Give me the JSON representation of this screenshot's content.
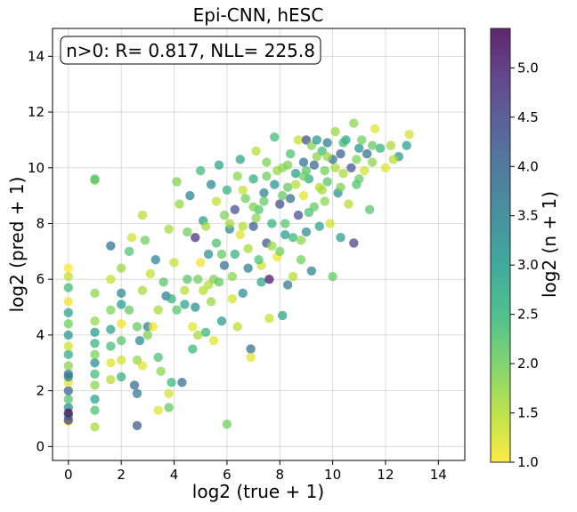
{
  "chart_data": {
    "type": "scatter",
    "title": "Epi-CNN, hESC",
    "xlabel": "log2 (true + 1)",
    "ylabel": "log2 (pred + 1)",
    "xlim": [
      -0.6,
      15
    ],
    "ylim": [
      -0.5,
      15
    ],
    "xticks": [
      0,
      2,
      4,
      6,
      8,
      10,
      12,
      14
    ],
    "yticks": [
      0,
      2,
      4,
      6,
      8,
      10,
      12,
      14
    ],
    "grid": true,
    "annotation": "n>0: R= 0.817, NLL= 225.8",
    "colorbar": {
      "label": "log2 (n + 1)",
      "min": 1.0,
      "max": 5.4,
      "ticks": [
        "1.0",
        "1.5",
        "2.0",
        "2.5",
        "3.0",
        "3.5",
        "4.0",
        "4.5",
        "5.0"
      ],
      "colormap": "viridis_r"
    },
    "columns": [
      "x",
      "y",
      "c"
    ],
    "points": [
      [
        0,
        0.9,
        1.0
      ],
      [
        0,
        1.1,
        2.6
      ],
      [
        0,
        1.4,
        3.3
      ],
      [
        0,
        1.7,
        2.2
      ],
      [
        0,
        2.0,
        4.0
      ],
      [
        0,
        2.3,
        1.2
      ],
      [
        0,
        2.6,
        3.8
      ],
      [
        0,
        2.9,
        1.8
      ],
      [
        0,
        3.3,
        2.7
      ],
      [
        0,
        3.6,
        1.3
      ],
      [
        0,
        4.0,
        3.1
      ],
      [
        0,
        4.4,
        2.0
      ],
      [
        0,
        4.8,
        2.9
      ],
      [
        0,
        5.2,
        1.1
      ],
      [
        0,
        5.7,
        2.4
      ],
      [
        0,
        6.1,
        1.4
      ],
      [
        0,
        6.4,
        1.0
      ],
      [
        0,
        1.2,
        5.3
      ],
      [
        0,
        0.95,
        4.6
      ],
      [
        0,
        2.5,
        3.6
      ],
      [
        1,
        0.7,
        1.6
      ],
      [
        1,
        1.3,
        2.3
      ],
      [
        1,
        1.7,
        2.9
      ],
      [
        1,
        2.2,
        1.8
      ],
      [
        1,
        2.6,
        2.4
      ],
      [
        1,
        3.0,
        3.3
      ],
      [
        1,
        3.3,
        1.9
      ],
      [
        1,
        3.7,
        2.6
      ],
      [
        1,
        4.1,
        3.0
      ],
      [
        1,
        4.5,
        1.7
      ],
      [
        1,
        5.5,
        1.8
      ],
      [
        1,
        9.55,
        1.9
      ],
      [
        1,
        9.6,
        2.2
      ],
      [
        1.6,
        2.4,
        1.5
      ],
      [
        1.6,
        3.0,
        1.2
      ],
      [
        1.6,
        3.6,
        2.4
      ],
      [
        1.6,
        4.2,
        2.9
      ],
      [
        1.6,
        4.9,
        1.9
      ],
      [
        1.6,
        6.0,
        1.4
      ],
      [
        1.6,
        7.2,
        3.8
      ],
      [
        2.0,
        2.5,
        2.6
      ],
      [
        2.0,
        3.1,
        1.3
      ],
      [
        2.0,
        3.8,
        2.2
      ],
      [
        2.0,
        4.4,
        1.1
      ],
      [
        2.0,
        5.1,
        3.0
      ],
      [
        2.0,
        5.5,
        3.4
      ],
      [
        2.0,
        6.4,
        1.7
      ],
      [
        2.3,
        7.0,
        2.3
      ],
      [
        2.4,
        7.5,
        1.3
      ],
      [
        2.5,
        2.2,
        3.9
      ],
      [
        2.6,
        0.75,
        4.2
      ],
      [
        2.6,
        1.9,
        3.7
      ],
      [
        2.6,
        4.3,
        2.1
      ],
      [
        2.7,
        3.8,
        3.4
      ],
      [
        2.8,
        2.9,
        1.2
      ],
      [
        2.8,
        5.6,
        1.6
      ],
      [
        2.9,
        7.4,
        2.0
      ],
      [
        2.8,
        8.3,
        1.5
      ],
      [
        3.0,
        4.3,
        3.6
      ],
      [
        3.1,
        6.2,
        1.4
      ],
      [
        3.2,
        4.3,
        1.1
      ],
      [
        3.3,
        6.7,
        3.5
      ],
      [
        3.4,
        1.3,
        1.2
      ],
      [
        3.4,
        3.2,
        2.3
      ],
      [
        3.5,
        2.7,
        1.8
      ],
      [
        3.6,
        5.9,
        2.2
      ],
      [
        3.7,
        5.4,
        3.7
      ],
      [
        3.8,
        1.9,
        1.3
      ],
      [
        3.8,
        1.4,
        2.1
      ],
      [
        3.9,
        2.3,
        2.5
      ],
      [
        3.8,
        7.8,
        1.6
      ],
      [
        3.9,
        5.3,
        2.6
      ],
      [
        4.0,
        6.6,
        1.4
      ],
      [
        4.1,
        9.5,
        1.9
      ],
      [
        4.2,
        8.7,
        1.7
      ],
      [
        4.3,
        2.3,
        3.9
      ],
      [
        4.4,
        5.1,
        2.9
      ],
      [
        4.5,
        6.0,
        2.2
      ],
      [
        4.6,
        9.0,
        3.5
      ],
      [
        4.7,
        4.3,
        1.2
      ],
      [
        4.7,
        3.5,
        2.5
      ],
      [
        4.8,
        7.5,
        4.9
      ],
      [
        4.8,
        5.0,
        3.3
      ],
      [
        4.9,
        4.0,
        1.6
      ],
      [
        5.0,
        9.9,
        2.4
      ],
      [
        5.0,
        6.6,
        1.1
      ],
      [
        5.1,
        8.1,
        3.0
      ],
      [
        5.2,
        4.1,
        2.5
      ],
      [
        5.3,
        5.8,
        1.5
      ],
      [
        5.3,
        6.9,
        3.2
      ],
      [
        5.4,
        9.4,
        3.4
      ],
      [
        5.5,
        3.8,
        1.2
      ],
      [
        5.5,
        6.0,
        1.9
      ],
      [
        5.6,
        8.8,
        1.4
      ],
      [
        5.6,
        7.3,
        2.3
      ],
      [
        5.7,
        10.1,
        2.8
      ],
      [
        5.7,
        5.9,
        2.1
      ],
      [
        5.8,
        4.5,
        3.0
      ],
      [
        5.9,
        6.5,
        3.8
      ],
      [
        6.0,
        9.2,
        2.6
      ],
      [
        6.0,
        0.8,
        2.0
      ],
      [
        6.1,
        7.8,
        3.4
      ],
      [
        6.2,
        5.3,
        1.3
      ],
      [
        6.3,
        8.5,
        4.4
      ],
      [
        6.3,
        6.9,
        2.6
      ],
      [
        6.4,
        9.7,
        1.8
      ],
      [
        6.4,
        4.3,
        1.5
      ],
      [
        6.5,
        10.3,
        2.9
      ],
      [
        6.5,
        7.6,
        1.2
      ],
      [
        6.6,
        5.5,
        3.3
      ],
      [
        6.7,
        8.9,
        2.0
      ],
      [
        6.8,
        6.4,
        3.6
      ],
      [
        6.9,
        3.5,
        3.9
      ],
      [
        6.9,
        3.2,
        1.2
      ],
      [
        7.0,
        9.6,
        2.7
      ],
      [
        7.0,
        7.9,
        4.2
      ],
      [
        7.1,
        10.6,
        1.5
      ],
      [
        7.2,
        8.5,
        2.3
      ],
      [
        7.3,
        5.9,
        2.8
      ],
      [
        7.3,
        6.5,
        1.3
      ],
      [
        7.4,
        9.1,
        3.5
      ],
      [
        7.5,
        7.3,
        4.3
      ],
      [
        7.5,
        10.2,
        1.9
      ],
      [
        7.6,
        6.0,
        5.2
      ],
      [
        7.6,
        4.6,
        1.4
      ],
      [
        7.7,
        8.0,
        2.6
      ],
      [
        7.8,
        9.4,
        3.2
      ],
      [
        7.8,
        11.1,
        2.4
      ],
      [
        7.9,
        6.8,
        1.1
      ],
      [
        8.0,
        8.7,
        4.4
      ],
      [
        8.1,
        10.0,
        1.8
      ],
      [
        8.1,
        4.7,
        2.9
      ],
      [
        8.2,
        7.6,
        3.0
      ],
      [
        8.3,
        9.3,
        2.1
      ],
      [
        8.3,
        5.8,
        3.7
      ],
      [
        8.4,
        10.5,
        2.3
      ],
      [
        8.4,
        8.9,
        3.9
      ],
      [
        8.5,
        6.1,
        1.5
      ],
      [
        8.5,
        7.5,
        2.5
      ],
      [
        8.6,
        9.8,
        3.0
      ],
      [
        8.7,
        11.0,
        1.4
      ],
      [
        8.7,
        8.3,
        4.4
      ],
      [
        8.8,
        6.7,
        2.0
      ],
      [
        8.9,
        10.2,
        3.8
      ],
      [
        8.9,
        9.0,
        1.2
      ],
      [
        9.0,
        7.7,
        3.3
      ],
      [
        9.0,
        11.0,
        4.4
      ],
      [
        9.1,
        9.6,
        2.7
      ],
      [
        9.2,
        10.8,
        1.9
      ],
      [
        9.2,
        6.3,
        3.5
      ],
      [
        9.3,
        8.6,
        2.1
      ],
      [
        9.3,
        10.1,
        4.0
      ],
      [
        9.4,
        11.0,
        3.1
      ],
      [
        9.5,
        9.3,
        1.5
      ],
      [
        9.5,
        7.9,
        2.9
      ],
      [
        9.6,
        10.6,
        2.4
      ],
      [
        9.7,
        8.8,
        1.8
      ],
      [
        9.8,
        10.9,
        3.6
      ],
      [
        9.8,
        9.5,
        2.2
      ],
      [
        9.9,
        8.0,
        1.3
      ],
      [
        10.0,
        10.3,
        3.9
      ],
      [
        10.0,
        6.1,
        2.1
      ],
      [
        10.1,
        11.3,
        1.7
      ],
      [
        10.2,
        9.1,
        3.3
      ],
      [
        10.3,
        10.5,
        4.1
      ],
      [
        10.3,
        7.5,
        3.0
      ],
      [
        10.4,
        9.8,
        1.6
      ],
      [
        10.5,
        11.0,
        2.8
      ],
      [
        10.6,
        8.7,
        1.5
      ],
      [
        10.7,
        10.0,
        4.3
      ],
      [
        10.8,
        7.3,
        4.6
      ],
      [
        10.8,
        11.6,
        1.8
      ],
      [
        10.9,
        9.4,
        2.3
      ],
      [
        11.0,
        10.7,
        3.2
      ],
      [
        11.1,
        11.0,
        2.0
      ],
      [
        11.2,
        9.9,
        1.3
      ],
      [
        11.3,
        10.5,
        3.9
      ],
      [
        11.4,
        8.5,
        2.2
      ],
      [
        11.5,
        10.2,
        1.8
      ],
      [
        11.6,
        11.4,
        1.2
      ],
      [
        11.8,
        10.7,
        2.6
      ],
      [
        12.0,
        10.0,
        1.2
      ],
      [
        12.2,
        10.8,
        1.6
      ],
      [
        12.5,
        10.4,
        3.1
      ],
      [
        12.8,
        10.8,
        3.0
      ],
      [
        12.9,
        11.2,
        1.3
      ],
      [
        4.5,
        7.7,
        2.0
      ],
      [
        5.2,
        7.9,
        1.6
      ],
      [
        5.9,
        8.3,
        1.9
      ],
      [
        6.6,
        9.2,
        1.4
      ],
      [
        7.1,
        8.2,
        1.8
      ],
      [
        7.4,
        8.8,
        2.1
      ],
      [
        7.9,
        9.9,
        1.7
      ],
      [
        8.2,
        8.0,
        2.2
      ],
      [
        8.6,
        9.4,
        1.5
      ],
      [
        9.1,
        8.4,
        2.3
      ],
      [
        9.4,
        10.4,
        1.8
      ],
      [
        9.7,
        9.9,
        2.0
      ],
      [
        10.1,
        10.0,
        1.6
      ],
      [
        10.4,
        10.9,
        2.4
      ],
      [
        10.9,
        10.3,
        1.9
      ],
      [
        11.5,
        10.8,
        2.1
      ],
      [
        6.2,
        6.1,
        1.8
      ],
      [
        6.8,
        7.1,
        1.6
      ],
      [
        7.2,
        6.7,
        2.3
      ],
      [
        7.7,
        7.2,
        1.7
      ],
      [
        8.0,
        7.0,
        2.0
      ],
      [
        8.8,
        7.4,
        1.8
      ],
      [
        5.4,
        5.2,
        1.7
      ],
      [
        4.9,
        6.0,
        2.0
      ],
      [
        5.1,
        5.6,
        1.5
      ],
      [
        6.1,
        8.0,
        1.6
      ],
      [
        7.5,
        9.7,
        2.0
      ],
      [
        8.3,
        10.1,
        1.9
      ],
      [
        9.0,
        9.9,
        2.2
      ],
      [
        9.8,
        10.4,
        1.7
      ],
      [
        3.4,
        4.9,
        1.6
      ],
      [
        3.0,
        4.0,
        1.9
      ],
      [
        2.3,
        4.9,
        2.1
      ],
      [
        2.6,
        3.1,
        1.7
      ],
      [
        4.1,
        4.9,
        2.2
      ],
      [
        4.4,
        5.6,
        1.5
      ],
      [
        5.8,
        6.9,
        2.1
      ],
      [
        6.6,
        7.9,
        1.5
      ],
      [
        7.0,
        8.6,
        1.9
      ],
      [
        8.1,
        9.0,
        2.1
      ],
      [
        8.9,
        9.7,
        2.0
      ],
      [
        9.6,
        9.2,
        1.6
      ],
      [
        10.3,
        9.3,
        1.9
      ],
      [
        11.0,
        9.6,
        2.1
      ],
      [
        12.3,
        10.3,
        1.5
      ]
    ]
  }
}
